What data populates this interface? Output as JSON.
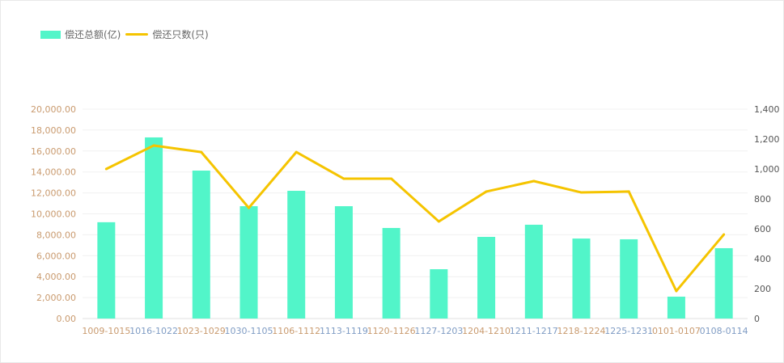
{
  "chart_data": {
    "type": "bar+line",
    "categories": [
      "1009-1015",
      "1016-1022",
      "1023-1029",
      "1030-1105",
      "1106-1112",
      "1113-1119",
      "1120-1126",
      "1127-1203",
      "1204-1210",
      "1211-1217",
      "1218-1224",
      "1225-1231",
      "0101-0107",
      "0108-0114"
    ],
    "series": [
      {
        "name": "偿还总额(亿)",
        "type": "bar",
        "axis": "left",
        "color": "#52f5c9",
        "values": [
          9200,
          17300,
          14130,
          10730,
          12200,
          10730,
          8650,
          4710,
          7800,
          8960,
          7640,
          7570,
          2090,
          6720
        ]
      },
      {
        "name": "偿还只数(只)",
        "type": "line",
        "axis": "right",
        "color": "#f5c400",
        "values": [
          1000,
          1157,
          1113,
          740,
          1113,
          935,
          935,
          649,
          849,
          919,
          843,
          849,
          184,
          562
        ]
      }
    ],
    "y_left": {
      "range": [
        0,
        20000
      ],
      "ticks": [
        "0.00",
        "2,000.00",
        "4,000.00",
        "6,000.00",
        "8,000.00",
        "10,000.00",
        "12,000.00",
        "14,000.00",
        "16,000.00",
        "18,000.00",
        "20,000.00"
      ]
    },
    "y_right": {
      "range": [
        0,
        1400
      ],
      "ticks": [
        "0",
        "200",
        "400",
        "600",
        "800",
        "1,000",
        "1,200",
        "1,400"
      ]
    },
    "grid": true,
    "legend": "top-left",
    "tick_colors": [
      "#c99a6e",
      "#7f9cc4"
    ]
  }
}
